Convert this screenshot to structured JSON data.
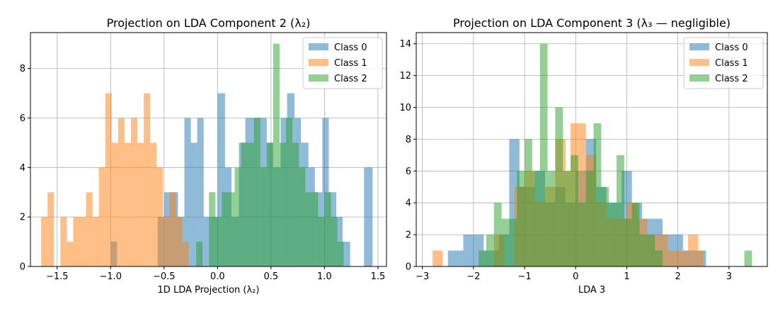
{
  "chart_data": [
    {
      "type": "histogram",
      "title": "Projection on LDA Component 2 (λ₂)",
      "xlabel": "1D LDA Projection (λ₂)",
      "ylabel": "",
      "xlim": [
        -1.75,
        1.58
      ],
      "ylim": [
        0,
        9.45
      ],
      "xticks": [
        -1.5,
        -1.0,
        -0.5,
        0.0,
        0.5,
        1.0,
        1.5
      ],
      "xtick_labels": [
        "−1.5",
        "−1.0",
        "−0.5",
        "0.0",
        "0.5",
        "1.0",
        "1.5"
      ],
      "yticks": [
        0,
        2,
        4,
        6,
        8
      ],
      "ytick_labels": [
        "0",
        "2",
        "4",
        "6",
        "8"
      ],
      "grid": true,
      "legend": "top-right",
      "series": [
        {
          "name": "Class 0",
          "color": "#1f77b4",
          "bins": [
            [
              -1.0,
              -0.94,
              1
            ],
            [
              -0.94,
              -0.86,
              0
            ],
            [
              -0.56,
              -0.5,
              2
            ],
            [
              -0.5,
              -0.44,
              3
            ],
            [
              -0.44,
              -0.37,
              3
            ],
            [
              -0.37,
              -0.31,
              2
            ],
            [
              -0.31,
              -0.25,
              6
            ],
            [
              -0.25,
              -0.19,
              5
            ],
            [
              -0.19,
              -0.13,
              6
            ],
            [
              -0.13,
              -0.06,
              2
            ],
            [
              -0.06,
              0.0,
              2
            ],
            [
              0.0,
              0.07,
              7
            ],
            [
              0.07,
              0.13,
              4
            ],
            [
              0.13,
              0.2,
              2
            ],
            [
              0.2,
              0.26,
              5
            ],
            [
              0.26,
              0.33,
              6
            ],
            [
              0.33,
              0.39,
              6
            ],
            [
              0.39,
              0.46,
              6
            ],
            [
              0.46,
              0.52,
              5
            ],
            [
              0.52,
              0.59,
              4
            ],
            [
              0.59,
              0.65,
              6
            ],
            [
              0.65,
              0.72,
              7
            ],
            [
              0.72,
              0.78,
              6
            ],
            [
              0.78,
              0.85,
              5
            ],
            [
              0.85,
              0.91,
              4
            ],
            [
              0.91,
              0.98,
              3
            ],
            [
              0.98,
              1.04,
              6
            ],
            [
              1.04,
              1.11,
              3
            ],
            [
              1.11,
              1.17,
              2
            ],
            [
              1.17,
              1.24,
              1
            ],
            [
              1.24,
              1.37,
              0
            ],
            [
              1.37,
              1.45,
              4
            ]
          ]
        },
        {
          "name": "Class 1",
          "color": "#ff7f0e",
          "bins": [
            [
              -1.65,
              -1.59,
              2
            ],
            [
              -1.59,
              -1.53,
              3
            ],
            [
              -1.53,
              -1.47,
              0
            ],
            [
              -1.47,
              -1.41,
              2
            ],
            [
              -1.41,
              -1.35,
              1
            ],
            [
              -1.35,
              -1.29,
              2
            ],
            [
              -1.29,
              -1.23,
              2
            ],
            [
              -1.23,
              -1.17,
              3
            ],
            [
              -1.17,
              -1.11,
              2
            ],
            [
              -1.11,
              -1.05,
              4
            ],
            [
              -1.05,
              -0.99,
              7
            ],
            [
              -0.99,
              -0.93,
              5
            ],
            [
              -0.93,
              -0.87,
              6
            ],
            [
              -0.87,
              -0.81,
              5
            ],
            [
              -0.81,
              -0.75,
              6
            ],
            [
              -0.75,
              -0.69,
              5
            ],
            [
              -0.69,
              -0.63,
              7
            ],
            [
              -0.63,
              -0.57,
              5
            ],
            [
              -0.57,
              -0.51,
              4
            ],
            [
              -0.51,
              -0.45,
              2
            ],
            [
              -0.45,
              -0.39,
              3
            ],
            [
              -0.39,
              -0.33,
              2
            ],
            [
              -0.33,
              -0.27,
              1
            ]
          ]
        },
        {
          "name": "Class 2",
          "color": "#2ca02c",
          "bins": [
            [
              -0.2,
              -0.14,
              1
            ],
            [
              -0.14,
              -0.08,
              0
            ],
            [
              -0.08,
              -0.02,
              3
            ],
            [
              -0.02,
              0.04,
              2
            ],
            [
              0.04,
              0.1,
              3
            ],
            [
              0.1,
              0.16,
              3
            ],
            [
              0.16,
              0.22,
              4
            ],
            [
              0.22,
              0.28,
              5
            ],
            [
              0.28,
              0.34,
              5
            ],
            [
              0.34,
              0.4,
              6
            ],
            [
              0.4,
              0.46,
              4
            ],
            [
              0.46,
              0.52,
              5
            ],
            [
              0.52,
              0.58,
              9
            ],
            [
              0.58,
              0.64,
              5
            ],
            [
              0.64,
              0.7,
              6
            ],
            [
              0.7,
              0.76,
              5
            ],
            [
              0.76,
              0.82,
              4
            ],
            [
              0.82,
              0.88,
              3
            ],
            [
              0.88,
              0.94,
              3
            ],
            [
              0.94,
              1.0,
              2
            ],
            [
              1.0,
              1.06,
              3
            ],
            [
              1.06,
              1.12,
              2
            ],
            [
              1.12,
              1.18,
              1
            ]
          ]
        }
      ]
    },
    {
      "type": "histogram",
      "title": "Projection on LDA Component 3 (λ₃ — negligible)",
      "xlabel": "LDA 3",
      "ylabel": "",
      "xlim": [
        -3.12,
        3.75
      ],
      "ylim": [
        0,
        14.7
      ],
      "xticks": [
        -3,
        -2,
        -1,
        0,
        1,
        2,
        3
      ],
      "xtick_labels": [
        "−3",
        "−2",
        "−1",
        "0",
        "1",
        "2",
        "3"
      ],
      "yticks": [
        0,
        2,
        4,
        6,
        8,
        10,
        12,
        14
      ],
      "ytick_labels": [
        "0",
        "2",
        "4",
        "6",
        "8",
        "10",
        "12",
        "14"
      ],
      "grid": true,
      "legend": "top-right",
      "series": [
        {
          "name": "Class 0",
          "color": "#1f77b4",
          "bins": [
            [
              -2.5,
              -2.2,
              1
            ],
            [
              -2.2,
              -1.8,
              2
            ],
            [
              -1.8,
              -1.5,
              1
            ],
            [
              -1.5,
              -1.3,
              2
            ],
            [
              -1.3,
              -1.1,
              8
            ],
            [
              -1.1,
              -0.8,
              5
            ],
            [
              -0.8,
              -0.6,
              6
            ],
            [
              -0.6,
              -0.4,
              4
            ],
            [
              -0.4,
              -0.2,
              5
            ],
            [
              -0.2,
              0.0,
              4
            ],
            [
              0.0,
              0.2,
              6
            ],
            [
              0.2,
              0.4,
              8
            ],
            [
              0.4,
              0.6,
              5
            ],
            [
              0.6,
              0.9,
              4
            ],
            [
              0.9,
              1.1,
              6
            ],
            [
              1.1,
              1.3,
              4
            ],
            [
              1.3,
              1.5,
              3
            ],
            [
              1.5,
              1.7,
              3
            ],
            [
              1.7,
              1.9,
              2
            ],
            [
              1.9,
              2.1,
              2
            ],
            [
              2.1,
              2.3,
              1
            ],
            [
              2.3,
              2.55,
              1
            ]
          ]
        },
        {
          "name": "Class 1",
          "color": "#ff7f0e",
          "bins": [
            [
              -2.8,
              -2.6,
              1
            ],
            [
              -1.6,
              -1.4,
              2
            ],
            [
              -1.2,
              -1.0,
              5
            ],
            [
              -1.0,
              -0.8,
              6
            ],
            [
              -0.8,
              -0.6,
              4
            ],
            [
              -0.6,
              -0.4,
              5
            ],
            [
              -0.4,
              -0.2,
              8
            ],
            [
              -0.2,
              -0.1,
              6
            ],
            [
              -0.1,
              0.2,
              9
            ],
            [
              0.2,
              0.4,
              7
            ],
            [
              0.4,
              0.6,
              4
            ],
            [
              0.6,
              0.8,
              3
            ],
            [
              0.8,
              1.0,
              3
            ],
            [
              1.0,
              1.2,
              4
            ],
            [
              1.2,
              1.4,
              3
            ],
            [
              1.4,
              1.6,
              2
            ],
            [
              1.6,
              1.8,
              2
            ],
            [
              1.8,
              2.0,
              1
            ],
            [
              2.0,
              2.2,
              1
            ],
            [
              2.2,
              2.4,
              2
            ],
            [
              2.4,
              2.5,
              1
            ]
          ]
        },
        {
          "name": "Class 2",
          "color": "#2ca02c",
          "bins": [
            [
              -1.9,
              -1.75,
              1
            ],
            [
              -1.75,
              -1.6,
              2
            ],
            [
              -1.6,
              -1.45,
              4
            ],
            [
              -1.45,
              -1.3,
              3
            ],
            [
              -1.3,
              -1.15,
              3
            ],
            [
              -1.15,
              -1.0,
              6
            ],
            [
              -1.0,
              -0.85,
              8
            ],
            [
              -0.85,
              -0.7,
              6
            ],
            [
              -0.7,
              -0.55,
              14
            ],
            [
              -0.55,
              -0.4,
              6
            ],
            [
              -0.4,
              -0.25,
              10
            ],
            [
              -0.25,
              -0.1,
              6
            ],
            [
              -0.1,
              0.05,
              7
            ],
            [
              0.05,
              0.2,
              4
            ],
            [
              0.2,
              0.35,
              6
            ],
            [
              0.35,
              0.5,
              9
            ],
            [
              0.5,
              0.65,
              5
            ],
            [
              0.65,
              0.8,
              4
            ],
            [
              0.8,
              0.95,
              7
            ],
            [
              0.95,
              1.1,
              3
            ],
            [
              1.1,
              1.25,
              4
            ],
            [
              1.25,
              1.4,
              2
            ],
            [
              1.4,
              1.55,
              2
            ],
            [
              1.55,
              1.7,
              1
            ],
            [
              3.3,
              3.45,
              1
            ]
          ]
        }
      ]
    }
  ]
}
